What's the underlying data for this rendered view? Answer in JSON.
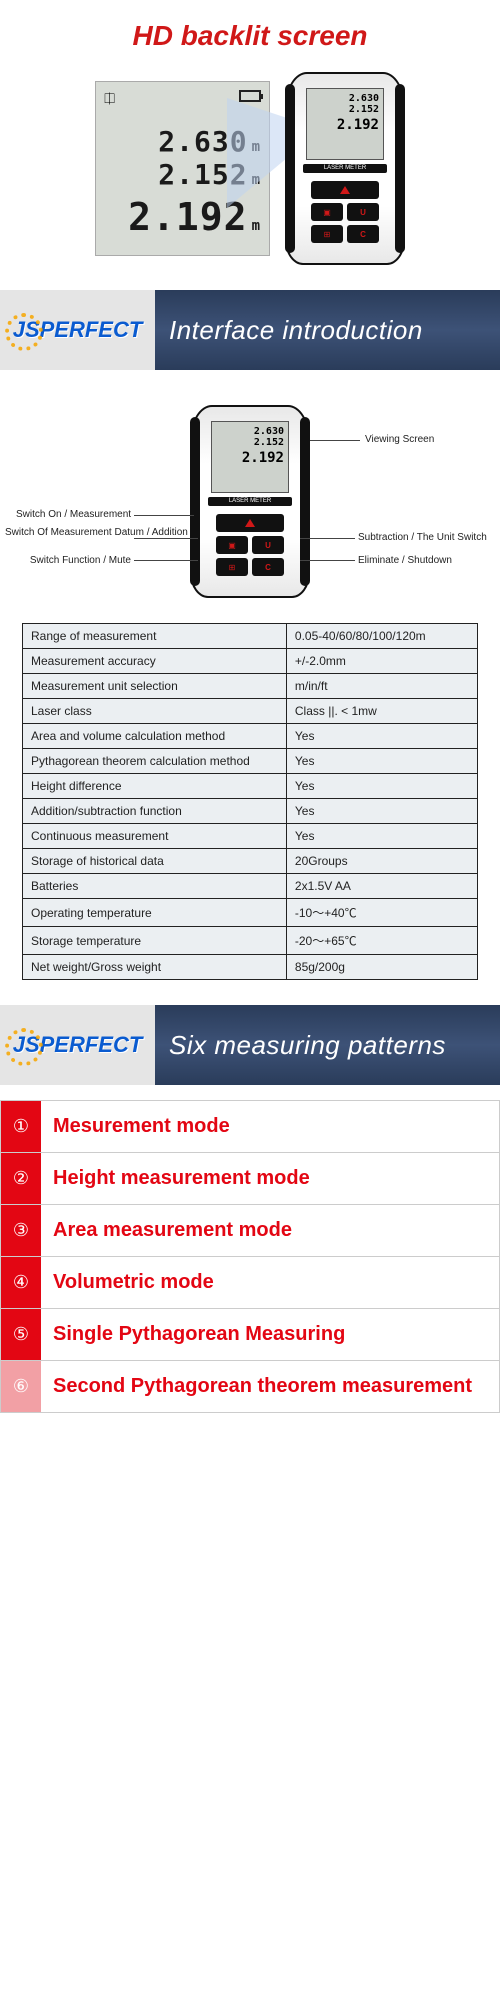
{
  "section1": {
    "title": "HD backlit screen",
    "title_color": "#d01818",
    "lcd": {
      "values": [
        "2.630",
        "2.152",
        "2.192"
      ],
      "unit": "m",
      "bg_color": "#d8dcd6"
    },
    "device_label": "LASER METER"
  },
  "banner1": {
    "logo": "JSPERFECT",
    "title": "Interface introduction",
    "bg_gradient": "#3d5277"
  },
  "interface": {
    "callouts": {
      "left": [
        "Switch On / Measurement",
        "Switch Of Measurement Datum / Addition",
        "Switch Function / Mute"
      ],
      "right": [
        "Viewing Screen",
        "Subtraction / The Unit Switch",
        "Eliminate / Shutdown"
      ]
    }
  },
  "spec_table": {
    "rows": [
      [
        "Range of measurement",
        "0.05-40/60/80/100/120m"
      ],
      [
        "Measurement accuracy",
        "+/-2.0mm"
      ],
      [
        "Measurement unit selection",
        "m/in/ft"
      ],
      [
        "Laser class",
        "Class ||. < 1mw"
      ],
      [
        "Area and volume calculation method",
        "Yes"
      ],
      [
        "Pythagorean theorem calculation method",
        "Yes"
      ],
      [
        "Height difference",
        "Yes"
      ],
      [
        "Addition/subtraction function",
        "Yes"
      ],
      [
        "Continuous measurement",
        "Yes"
      ],
      [
        "Storage of historical data",
        "20Groups"
      ],
      [
        "Batteries",
        "2x1.5V AA"
      ],
      [
        "Operating temperature",
        "-10～+40℃"
      ],
      [
        "Storage temperature",
        "-20～+65℃"
      ],
      [
        "Net weight/Gross weight",
        "85g/200g"
      ]
    ],
    "bg_color": "#ebeff2",
    "border_color": "#222222"
  },
  "banner2": {
    "logo": "JSPERFECT",
    "title": "Six measuring patterns"
  },
  "modes": {
    "accent_color": "#e30613",
    "items": [
      {
        "num": "①",
        "label": "Mesurement mode",
        "muted": false
      },
      {
        "num": "②",
        "label": "Height measurement mode",
        "muted": false
      },
      {
        "num": "③",
        "label": "Area measurement mode",
        "muted": false
      },
      {
        "num": "④",
        "label": "Volumetric mode",
        "muted": false
      },
      {
        "num": "⑤",
        "label": "Single Pythagorean Measuring",
        "muted": false
      },
      {
        "num": "⑥",
        "label": "Second Pythagorean theorem measurement",
        "muted": true
      }
    ]
  }
}
